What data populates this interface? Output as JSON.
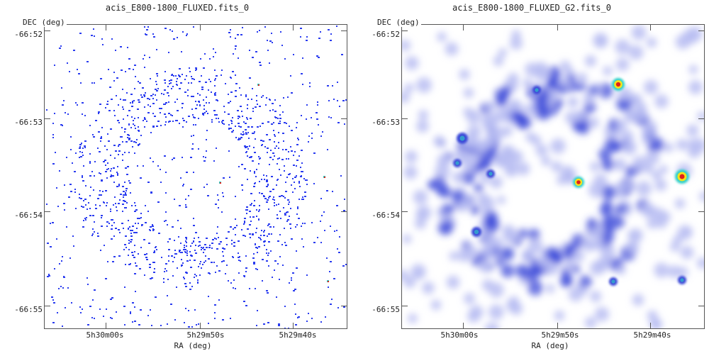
{
  "panels": [
    {
      "title": "acis_E800-1800_FLUXED.fits_0",
      "ylabel": "DEC (deg)",
      "xlabel": "RA (deg)",
      "yticks": [
        "-66:52",
        "-66:53",
        "-66:54",
        "-66:55"
      ],
      "xticks": [
        "5h30m00s",
        "5h29m50s",
        "5h29m40s"
      ]
    },
    {
      "title": "acis_E800-1800_FLUXED_G2.fits_0",
      "ylabel": "DEC (deg)",
      "xlabel": "RA (deg)",
      "yticks": [
        "-66:52",
        "-66:53",
        "-66:54",
        "-66:55"
      ],
      "xticks": [
        "5h30m00s",
        "5h29m50s",
        "5h29m40s"
      ]
    }
  ],
  "colors": {
    "background": "#ffffff",
    "counts": "#2a3cf0",
    "smooth_low": "#b8bdf2",
    "smooth_mid": "#3a48d8",
    "hot_core": "#e0201a",
    "hot_ring_yellow": "#f4e21c",
    "hot_ring_cyan": "#2ed0c8"
  }
}
